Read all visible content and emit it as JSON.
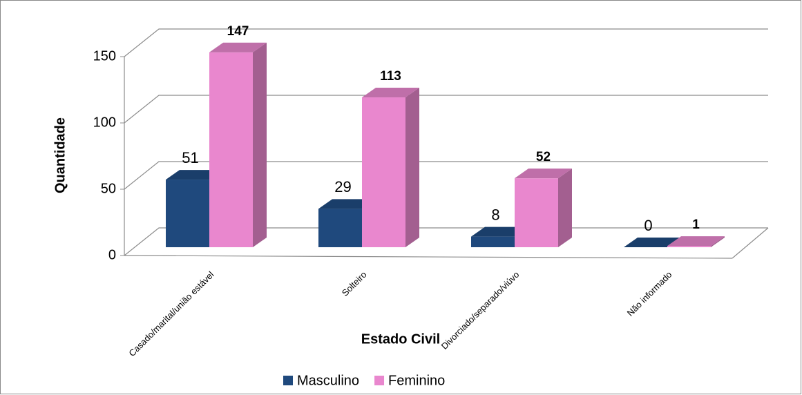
{
  "chart_data": {
    "type": "bar3d",
    "xlabel": "Estado Civil",
    "ylabel": "Quantidade",
    "categories": [
      "Casado/marital/união estável",
      "Solteiro",
      "Divorciado/separado/viúvo",
      "Não informado"
    ],
    "series": [
      {
        "name": "Masculino",
        "color": "#1f497d",
        "values": [
          51,
          29,
          8,
          0
        ]
      },
      {
        "name": "Feminino",
        "color": "#e987ce",
        "values": [
          147,
          113,
          52,
          1
        ]
      }
    ],
    "ylim": [
      0,
      150
    ],
    "yticks": [
      0,
      50,
      100,
      150
    ],
    "grid": true,
    "legend": "bottom"
  }
}
